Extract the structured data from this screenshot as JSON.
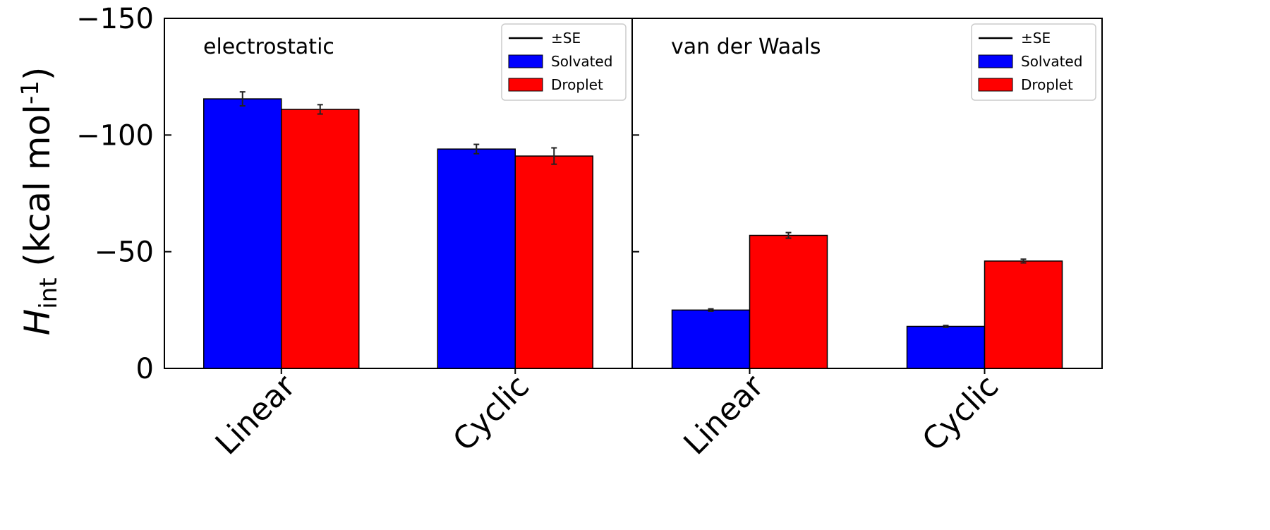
{
  "chart_data": {
    "type": "bar",
    "ylabel": {
      "main": "H",
      "sub": "int",
      "rest": " (kcal mol",
      "sup": "-1",
      "close": ")"
    },
    "ylim": [
      0,
      -150
    ],
    "yticks": [
      0,
      -50,
      -100,
      -150
    ],
    "ytick_labels": [
      "0",
      "−50",
      "−100",
      "−150"
    ],
    "categories": [
      "Linear",
      "Cyclic"
    ],
    "colors": {
      "Solvated": "#0000ff",
      "Droplet": "#ff0000"
    },
    "panels": [
      {
        "title": "electrostatic",
        "legend": [
          "±SE",
          "Solvated",
          "Droplet"
        ],
        "series": [
          {
            "name": "Solvated",
            "values": [
              -115.5,
              -94.0
            ],
            "errors": [
              3.0,
              2.0
            ]
          },
          {
            "name": "Droplet",
            "values": [
              -111.0,
              -91.0
            ],
            "errors": [
              2.0,
              3.5
            ]
          }
        ]
      },
      {
        "title": "van der Waals",
        "legend": [
          "±SE",
          "Solvated",
          "Droplet"
        ],
        "series": [
          {
            "name": "Solvated",
            "values": [
              -25.0,
              -18.0
            ],
            "errors": [
              0.5,
              0.4
            ]
          },
          {
            "name": "Droplet",
            "values": [
              -57.0,
              -46.0
            ],
            "errors": [
              1.2,
              0.8
            ]
          }
        ]
      }
    ]
  }
}
